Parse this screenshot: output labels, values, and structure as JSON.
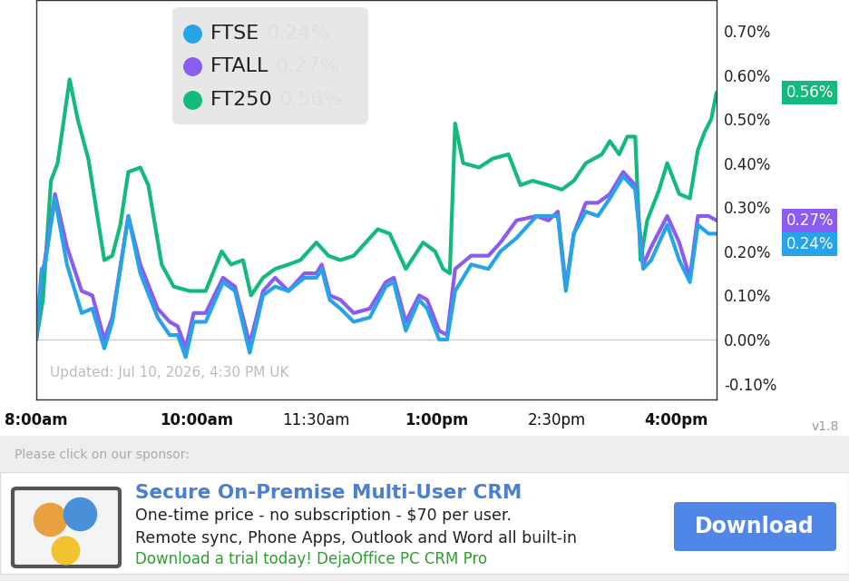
{
  "chart_data": {
    "type": "line",
    "note": "Updated: Jul 10, 2026, 4:30 PM UK",
    "version": "v1.8",
    "xlim": [
      0,
      510
    ],
    "xticks": [
      {
        "value": 0,
        "label": "8:00am"
      },
      {
        "value": 120,
        "label": "10:00am"
      },
      {
        "value": 210,
        "label": "11:30am"
      },
      {
        "value": 300,
        "label": "1:00pm"
      },
      {
        "value": 390,
        "label": "2:30pm"
      },
      {
        "value": 480,
        "label": "4:00pm"
      }
    ],
    "ylim": [
      -0.136,
      0.77
    ],
    "yticks": [
      {
        "value": -0.1,
        "label": "-0.10%"
      },
      {
        "value": 0,
        "label": "0.00%"
      },
      {
        "value": 0.1,
        "label": "0.10%"
      },
      {
        "value": 0.2,
        "label": "0.20%"
      },
      {
        "value": 0.3,
        "label": "0.30%"
      },
      {
        "value": 0.4,
        "label": "0.40%"
      },
      {
        "value": 0.5,
        "label": "0.50%"
      },
      {
        "value": 0.6,
        "label": "0.60%"
      },
      {
        "value": 0.7,
        "label": "0.70%"
      }
    ],
    "grid": false,
    "legend": "upper center",
    "series": [
      {
        "name": "FTSE",
        "color": "#27a4e8",
        "last_value_label": "0.24%",
        "x": [
          0,
          4,
          6,
          14,
          23,
          34,
          42,
          51,
          57,
          69,
          78,
          91,
          100,
          106,
          112,
          118,
          127,
          140,
          149,
          160,
          170,
          179,
          189,
          201,
          210,
          214,
          220,
          228,
          238,
          250,
          262,
          268,
          277,
          287,
          293,
          302,
          308,
          314,
          326,
          339,
          348,
          360,
          375,
          384,
          391,
          397,
          403,
          412,
          421,
          430,
          440,
          449,
          455,
          461,
          473,
          482,
          490,
          496,
          504,
          510
        ],
        "values": [
          0,
          0.16,
          0.16,
          0.32,
          0.17,
          0.06,
          0.07,
          -0.02,
          0.04,
          0.28,
          0.15,
          0.05,
          0.01,
          0.01,
          -0.04,
          0.04,
          0.04,
          0.13,
          0.11,
          -0.03,
          0.1,
          0.12,
          0.11,
          0.14,
          0.14,
          0.16,
          0.09,
          0.07,
          0.04,
          0.05,
          0.12,
          0.13,
          0.02,
          0.09,
          0.07,
          0.0,
          0.0,
          0.11,
          0.17,
          0.16,
          0.2,
          0.23,
          0.28,
          0.28,
          0.28,
          0.11,
          0.24,
          0.29,
          0.28,
          0.32,
          0.37,
          0.34,
          0.16,
          0.18,
          0.26,
          0.18,
          0.13,
          0.26,
          0.24,
          0.24
        ]
      },
      {
        "name": "FTALL",
        "color": "#8b5cf0",
        "last_value_label": "0.27%",
        "x": [
          0,
          4,
          6,
          14,
          23,
          34,
          42,
          51,
          57,
          69,
          78,
          91,
          100,
          106,
          112,
          118,
          127,
          140,
          149,
          160,
          170,
          179,
          189,
          201,
          210,
          214,
          220,
          228,
          238,
          250,
          262,
          268,
          277,
          287,
          293,
          302,
          308,
          314,
          326,
          339,
          348,
          360,
          375,
          384,
          391,
          397,
          403,
          412,
          421,
          430,
          440,
          449,
          455,
          461,
          473,
          482,
          490,
          496,
          504,
          510
        ],
        "values": [
          0,
          0.15,
          0.17,
          0.33,
          0.21,
          0.11,
          0.1,
          0.0,
          0.05,
          0.28,
          0.17,
          0.07,
          0.04,
          0.03,
          -0.02,
          0.06,
          0.06,
          0.14,
          0.12,
          -0.01,
          0.11,
          0.14,
          0.11,
          0.15,
          0.15,
          0.17,
          0.1,
          0.09,
          0.06,
          0.07,
          0.13,
          0.14,
          0.04,
          0.1,
          0.09,
          0.02,
          0.01,
          0.16,
          0.19,
          0.19,
          0.22,
          0.27,
          0.28,
          0.27,
          0.29,
          0.12,
          0.24,
          0.31,
          0.31,
          0.33,
          0.38,
          0.35,
          0.17,
          0.21,
          0.28,
          0.22,
          0.14,
          0.28,
          0.28,
          0.27
        ]
      },
      {
        "name": "FT250",
        "color": "#14b97c",
        "last_value_label": "0.56%",
        "x": [
          0,
          5,
          11,
          16,
          25,
          31,
          39,
          51,
          57,
          63,
          69,
          78,
          84,
          94,
          103,
          115,
          127,
          139,
          146,
          155,
          161,
          170,
          179,
          189,
          198,
          210,
          219,
          228,
          238,
          244,
          256,
          265,
          277,
          290,
          299,
          305,
          310,
          314,
          320,
          332,
          342,
          354,
          363,
          372,
          384,
          394,
          403,
          412,
          424,
          430,
          437,
          443,
          449,
          453,
          458,
          467,
          473,
          482,
          490,
          496,
          501,
          506,
          510
        ],
        "values": [
          0,
          0.09,
          0.36,
          0.4,
          0.59,
          0.5,
          0.41,
          0.18,
          0.19,
          0.26,
          0.38,
          0.39,
          0.35,
          0.17,
          0.12,
          0.11,
          0.11,
          0.2,
          0.17,
          0.18,
          0.1,
          0.14,
          0.16,
          0.17,
          0.18,
          0.22,
          0.19,
          0.18,
          0.19,
          0.21,
          0.25,
          0.24,
          0.16,
          0.22,
          0.2,
          0.16,
          0.15,
          0.49,
          0.4,
          0.39,
          0.41,
          0.42,
          0.35,
          0.36,
          0.35,
          0.34,
          0.36,
          0.4,
          0.42,
          0.45,
          0.42,
          0.46,
          0.46,
          0.18,
          0.27,
          0.34,
          0.4,
          0.33,
          0.32,
          0.43,
          0.47,
          0.5,
          0.56
        ]
      }
    ]
  },
  "sponsor": {
    "prompt": "Please click on our sponsor:",
    "title": "Secure On-Premise Multi-User CRM",
    "lines": [
      "One-time price - no subscription - $70 per user.",
      "Remote sync, Phone Apps, Outlook and Word all built-in"
    ],
    "call_to_action": "Download a trial today! DejaOffice PC CRM Pro",
    "button": "Download"
  }
}
